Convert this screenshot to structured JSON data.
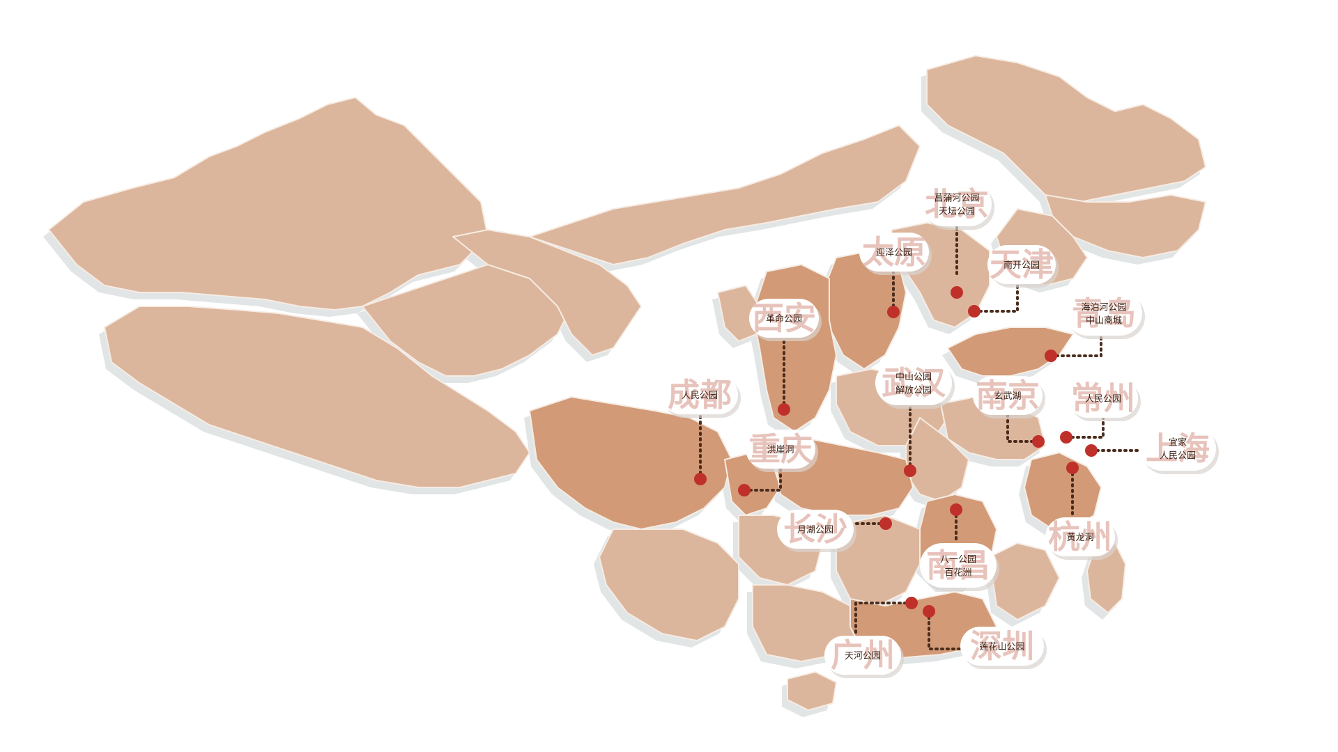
{
  "colors": {
    "region_light": "#dcb69c",
    "region_dark": "#d29a76",
    "border": "#f6ece4",
    "shadow": "#e1e5e6",
    "marker": "#c0302a",
    "leader": "#4a2c1c",
    "watermark": "#e3b9b0",
    "bubble": "#ffffff"
  },
  "cities": [
    {
      "id": "beijing",
      "name": "北京",
      "spots": [
        "菖蒲河公园",
        "天坛公园"
      ]
    },
    {
      "id": "tianjin",
      "name": "天津",
      "spots": [
        "南开公园"
      ]
    },
    {
      "id": "taiyuan",
      "name": "太原",
      "spots": [
        "迎泽公园"
      ]
    },
    {
      "id": "qingdao",
      "name": "青岛",
      "spots": [
        "海泊河公园",
        "中山商城"
      ]
    },
    {
      "id": "xian",
      "name": "西安",
      "spots": [
        "革命公园"
      ]
    },
    {
      "id": "wuhan",
      "name": "武汉",
      "spots": [
        "中山公园",
        "解放公园"
      ]
    },
    {
      "id": "nanjing",
      "name": "南京",
      "spots": [
        "玄武湖"
      ]
    },
    {
      "id": "changzhou",
      "name": "常州",
      "spots": [
        "人民公园"
      ]
    },
    {
      "id": "shanghai",
      "name": "上海",
      "spots": [
        "宜家",
        "人民公园"
      ]
    },
    {
      "id": "chengdu",
      "name": "成都",
      "spots": [
        "人民公园"
      ]
    },
    {
      "id": "chongqing",
      "name": "重庆",
      "spots": [
        "洪崖洞"
      ]
    },
    {
      "id": "hangzhou",
      "name": "杭州",
      "spots": [
        "黄龙洞"
      ]
    },
    {
      "id": "changsha",
      "name": "长沙",
      "spots": [
        "月湖公园"
      ]
    },
    {
      "id": "nanchang",
      "name": "南昌",
      "spots": [
        "八一公园",
        "百花洲"
      ]
    },
    {
      "id": "guangzhou",
      "name": "广州",
      "spots": [
        "天河公园"
      ]
    },
    {
      "id": "shenzhen",
      "name": "深圳",
      "spots": [
        "莲花山公园"
      ]
    }
  ]
}
